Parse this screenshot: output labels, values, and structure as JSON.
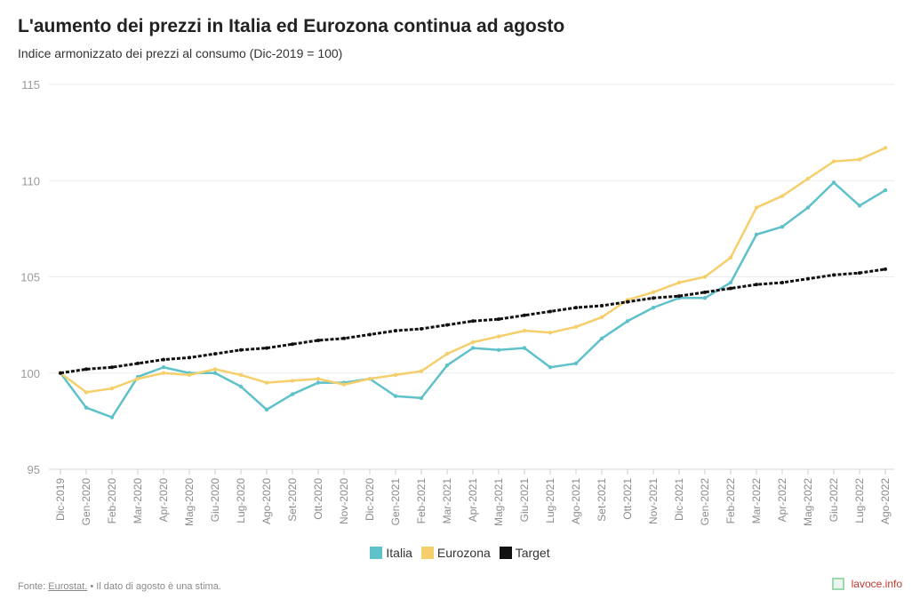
{
  "title": "L'aumento dei prezzi in Italia ed Eurozona continua ad agosto",
  "subtitle": "Indice armonizzato dei prezzi al consumo (Dic-2019 = 100)",
  "footer": {
    "prefix": "Fonte: ",
    "source_link": "Eurostat.",
    "note": " • Il dato di agosto è una stima."
  },
  "brand": {
    "label": "lavoce.info",
    "logo_icon": "lavoce-logo-icon"
  },
  "chart_data": {
    "type": "line",
    "x": [
      "Dic-2019",
      "Gen-2020",
      "Feb-2020",
      "Mar-2020",
      "Apr-2020",
      "Mag-2020",
      "Giu-2020",
      "Lug-2020",
      "Ago-2020",
      "Set-2020",
      "Ott-2020",
      "Nov-2020",
      "Dic-2020",
      "Gen-2021",
      "Feb-2021",
      "Mar-2021",
      "Apr-2021",
      "Mag-2021",
      "Giu-2021",
      "Lug-2021",
      "Ago-2021",
      "Set-2021",
      "Ott-2021",
      "Nov-2021",
      "Dic-2021",
      "Gen-2022",
      "Feb-2022",
      "Mar-2022",
      "Apr-2022",
      "Mag-2022",
      "Giu-2022",
      "Lug-2022",
      "Ago-2022"
    ],
    "ylim": [
      95,
      115
    ],
    "yticks": [
      95,
      100,
      105,
      110,
      115
    ],
    "grid": true,
    "legend_position": "bottom",
    "series": [
      {
        "name": "Italia",
        "color": "#5fc1c9",
        "style": "solid",
        "values": [
          100.0,
          98.2,
          97.7,
          99.8,
          100.3,
          100.0,
          100.0,
          99.3,
          98.1,
          98.9,
          99.5,
          99.5,
          99.7,
          98.8,
          98.7,
          100.4,
          101.3,
          101.2,
          101.3,
          100.3,
          100.5,
          101.8,
          102.7,
          103.4,
          103.9,
          103.9,
          104.7,
          107.2,
          107.6,
          108.6,
          109.9,
          108.7,
          109.5
        ]
      },
      {
        "name": "Eurozona",
        "color": "#f5cf6b",
        "style": "solid",
        "values": [
          100.0,
          99.0,
          99.2,
          99.7,
          100.0,
          99.9,
          100.2,
          99.9,
          99.5,
          99.6,
          99.7,
          99.4,
          99.7,
          99.9,
          100.1,
          101.0,
          101.6,
          101.9,
          102.2,
          102.1,
          102.4,
          102.9,
          103.8,
          104.2,
          104.7,
          105.0,
          106.0,
          108.6,
          109.2,
          110.1,
          111.0,
          111.1,
          111.7
        ]
      },
      {
        "name": "Target",
        "color": "#111111",
        "style": "dashed",
        "values": [
          100.0,
          100.2,
          100.3,
          100.5,
          100.7,
          100.8,
          101.0,
          101.2,
          101.3,
          101.5,
          101.7,
          101.8,
          102.0,
          102.2,
          102.3,
          102.5,
          102.7,
          102.8,
          103.0,
          103.2,
          103.4,
          103.5,
          103.7,
          103.9,
          104.0,
          104.2,
          104.4,
          104.6,
          104.7,
          104.9,
          105.1,
          105.2,
          105.4
        ]
      }
    ]
  }
}
